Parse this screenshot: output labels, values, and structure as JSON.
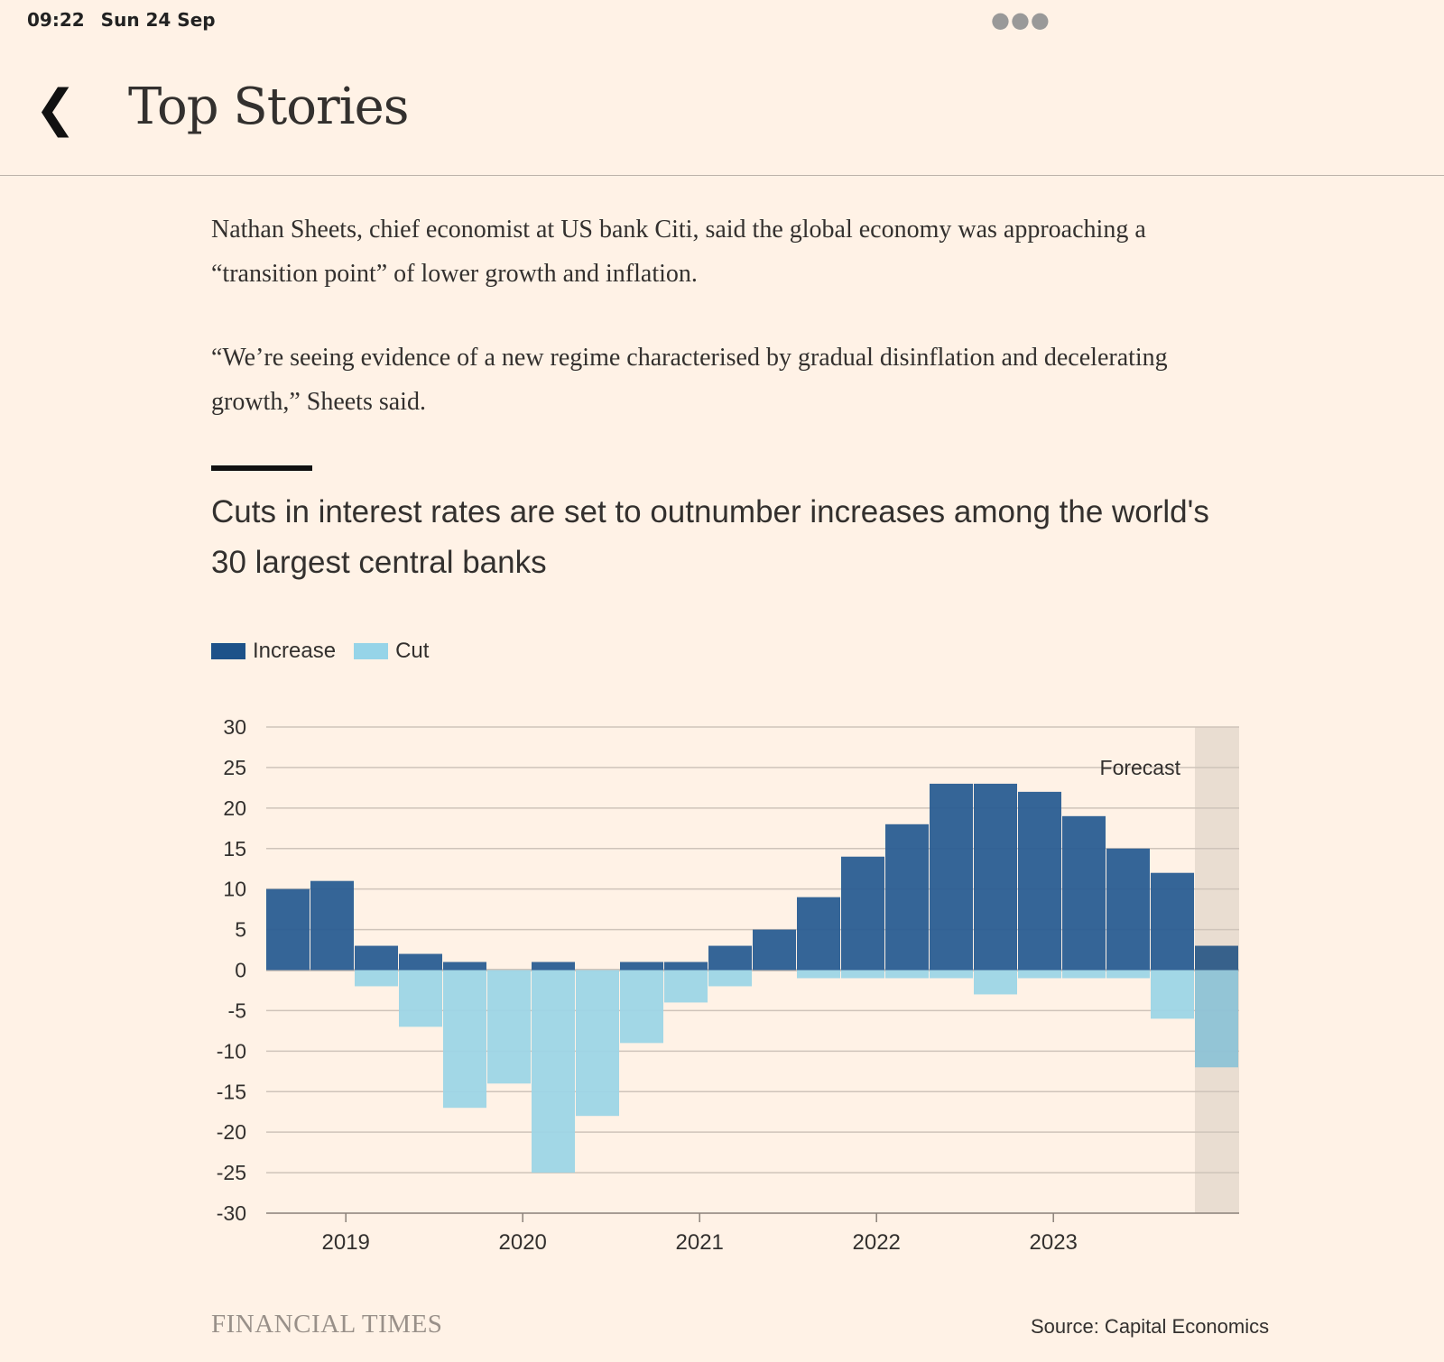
{
  "status_bar": {
    "time": "09:22",
    "date": "Sun 24 Sep"
  },
  "header": {
    "title": "Top Stories",
    "back_icon": "chevron-left-icon"
  },
  "article": {
    "paragraphs": [
      "Nathan Sheets, chief economist at US bank Citi, said the global economy was approaching a “transition point” of lower growth and inflation.",
      "“We’re seeing evidence of a new regime characterised by gradual disinflation and decelerating growth,” Sheets said."
    ]
  },
  "chart_data": {
    "type": "bar",
    "title": "Cuts in interest rates are set to outnumber increases among the world's 30 largest central banks",
    "legend": [
      {
        "name": "Increase",
        "color": "#1d5289"
      },
      {
        "name": "Cut",
        "color": "#96d4e8"
      }
    ],
    "legend_placement": "top-left",
    "x_start": 2018.55,
    "x_step": 0.25,
    "x_ticks": [
      2019,
      2020,
      2021,
      2022,
      2023
    ],
    "x_tick_labels": [
      "2019",
      "2020",
      "2021",
      "2022",
      "2023"
    ],
    "ylim": [
      -30,
      30
    ],
    "y_ticks": [
      30,
      25,
      20,
      15,
      10,
      5,
      0,
      -5,
      -10,
      -15,
      -20,
      -25,
      -30
    ],
    "y_tick_labels": [
      "30",
      "25",
      "20",
      "15",
      "10",
      "5",
      "0",
      "-5",
      "-10",
      "-15",
      "-20",
      "-25",
      "-30"
    ],
    "grid": true,
    "series": [
      {
        "name": "Increase",
        "values": [
          10,
          11,
          3,
          2,
          1,
          0,
          1,
          0,
          1,
          1,
          3,
          5,
          9,
          14,
          18,
          23,
          23,
          22,
          19,
          15,
          12,
          3
        ]
      },
      {
        "name": "Cut",
        "values": [
          0,
          0,
          -2,
          -7,
          -17,
          -14,
          -25,
          -18,
          -9,
          -4,
          -2,
          0,
          -1,
          -1,
          -1,
          -1,
          -3,
          -1,
          -1,
          -1,
          -6,
          -12
        ]
      }
    ],
    "forecast_from_index": 21,
    "annotation": "Forecast",
    "source": "Source: Capital Economics",
    "publisher": "FINANCIAL TIMES"
  }
}
